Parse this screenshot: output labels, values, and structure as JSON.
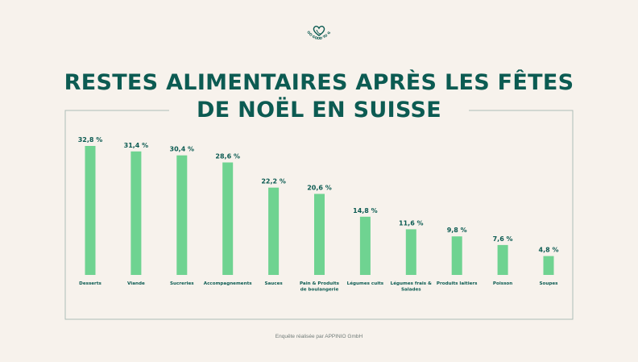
{
  "logo": {
    "text": "TOO GOOD TO GO",
    "color": "#0c5b52"
  },
  "title": {
    "line1": "RESTES ALIMENTAIRES APRÈS LES FÊTES",
    "line2": "DE NOËL EN SUISSE",
    "color": "#0c5b52"
  },
  "footer": "Enquête réalisée par APPINIO GmbH",
  "colors": {
    "bar": "#6fd391",
    "label": "#0c5b52",
    "frame": "#aebdb9",
    "category": "#0c5b52"
  },
  "chart_data": {
    "type": "bar",
    "title": "RESTES ALIMENTAIRES APRÈS LES FÊTES DE NOËL EN SUISSE",
    "categories": [
      [
        "Desserts"
      ],
      [
        "Viande"
      ],
      [
        "Sucreries"
      ],
      [
        "Accompagnements"
      ],
      [
        "Sauces"
      ],
      [
        "Pain & Produits",
        "de boulangerie"
      ],
      [
        "Légumes cuits"
      ],
      [
        "Légumes frais &",
        "Salades"
      ],
      [
        "Produits laitiers"
      ],
      [
        "Poisson"
      ],
      [
        "Soupes"
      ]
    ],
    "values": [
      32.8,
      31.4,
      30.4,
      28.6,
      22.2,
      20.6,
      14.8,
      11.6,
      9.8,
      7.6,
      4.8
    ],
    "value_labels": [
      "32,8 %",
      "31,4 %",
      "30,4 %",
      "28,6 %",
      "22,2 %",
      "20,6 %",
      "14,8 %",
      "11,6 %",
      "9,8 %",
      "7,6 %",
      "4,8 %"
    ],
    "unit": "%",
    "ylim": [
      0,
      32.8
    ],
    "grid": false,
    "legend": "none"
  }
}
